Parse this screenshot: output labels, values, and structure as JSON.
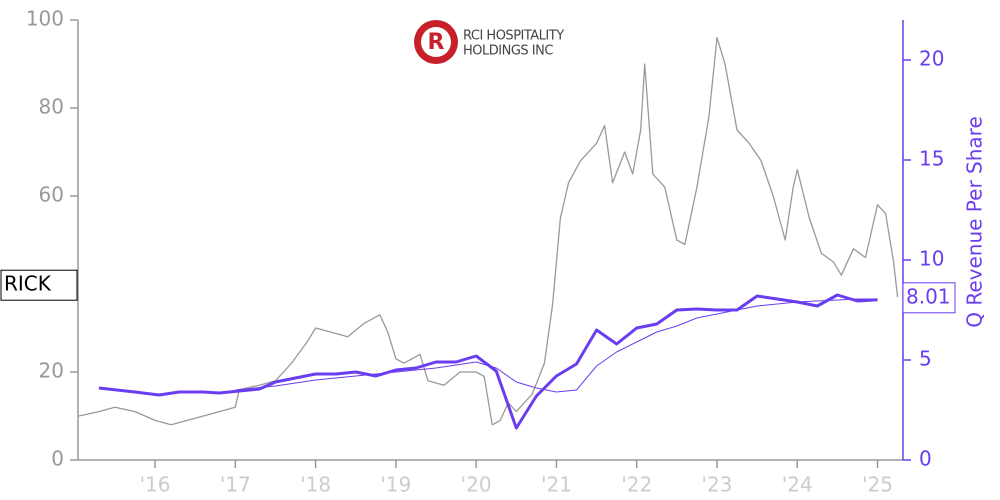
{
  "chart_data": {
    "type": "line",
    "logo_text": [
      "RCI HOSPITALITY",
      "HOLDINGS INC"
    ],
    "ticker": "RICK",
    "y2_label": "Q Revenue Per Share",
    "xlim": [
      2015.04,
      2025.28
    ],
    "xticks": [
      {
        "value": 2016,
        "label": "'16"
      },
      {
        "value": 2017,
        "label": "'17"
      },
      {
        "value": 2018,
        "label": "'18"
      },
      {
        "value": 2019,
        "label": "'19"
      },
      {
        "value": 2020,
        "label": "'20"
      },
      {
        "value": 2021,
        "label": "'21"
      },
      {
        "value": 2022,
        "label": "'22"
      },
      {
        "value": 2023,
        "label": "'23"
      },
      {
        "value": 2024,
        "label": "'24"
      },
      {
        "value": 2025,
        "label": "'25"
      }
    ],
    "ylim": [
      0,
      100
    ],
    "yticks": [
      0,
      20,
      60,
      80,
      100
    ],
    "y2lim": [
      0,
      22
    ],
    "y2ticks": [
      0,
      5,
      10,
      15,
      20
    ],
    "series": [
      {
        "color": "#999999",
        "axis": "y",
        "width": 1.3,
        "x": [
          2015.05,
          2015.3,
          2015.5,
          2015.75,
          2016.0,
          2016.2,
          2016.5,
          2016.8,
          2017.0,
          2017.05,
          2017.3,
          2017.5,
          2017.7,
          2017.9,
          2018.0,
          2018.2,
          2018.4,
          2018.6,
          2018.8,
          2018.9,
          2019.0,
          2019.1,
          2019.3,
          2019.4,
          2019.6,
          2019.8,
          2020.0,
          2020.1,
          2020.2,
          2020.3,
          2020.4,
          2020.5,
          2020.7,
          2020.85,
          2020.95,
          2021.05,
          2021.15,
          2021.3,
          2021.5,
          2021.6,
          2021.7,
          2021.85,
          2021.95,
          2022.05,
          2022.1,
          2022.2,
          2022.35,
          2022.5,
          2022.6,
          2022.75,
          2022.9,
          2023.0,
          2023.1,
          2023.25,
          2023.4,
          2023.55,
          2023.7,
          2023.85,
          2023.95,
          2024.0,
          2024.15,
          2024.3,
          2024.45,
          2024.55,
          2024.7,
          2024.85,
          2024.95,
          2025.0,
          2025.1,
          2025.2,
          2025.25
        ],
        "values": [
          10,
          11,
          12,
          11,
          9,
          8,
          9.5,
          11,
          12,
          16,
          17,
          18,
          22,
          27,
          30,
          29,
          28,
          31,
          33,
          29,
          23,
          22,
          24,
          18,
          17,
          20,
          20,
          19,
          8,
          9,
          13,
          11,
          15,
          22,
          35,
          55,
          63,
          68,
          72,
          76,
          63,
          70,
          65,
          75,
          90,
          65,
          62,
          50,
          49,
          62,
          78,
          96,
          90,
          75,
          72,
          68,
          60,
          50,
          62,
          66,
          55,
          47,
          45,
          42,
          48,
          46,
          54,
          58,
          56,
          45,
          37
        ]
      },
      {
        "color": "#6a3df0",
        "axis": "y2",
        "width": 3,
        "x": [
          2015.3,
          2015.75,
          2016.05,
          2016.3,
          2016.6,
          2016.8,
          2017.05,
          2017.3,
          2017.5,
          2017.75,
          2018.0,
          2018.25,
          2018.5,
          2018.75,
          2019.0,
          2019.25,
          2019.5,
          2019.75,
          2020.0,
          2020.25,
          2020.5,
          2020.75,
          2021.0,
          2021.25,
          2021.5,
          2021.75,
          2022.0,
          2022.25,
          2022.5,
          2022.75,
          2023.0,
          2023.25,
          2023.5,
          2023.75,
          2024.0,
          2024.25,
          2024.5,
          2024.75,
          2025.0
        ],
        "values": [
          3.6,
          3.4,
          3.25,
          3.4,
          3.4,
          3.35,
          3.45,
          3.55,
          3.9,
          4.1,
          4.3,
          4.3,
          4.4,
          4.2,
          4.5,
          4.6,
          4.9,
          4.9,
          5.2,
          4.45,
          1.6,
          3.2,
          4.2,
          4.8,
          6.5,
          5.8,
          6.6,
          6.8,
          7.5,
          7.55,
          7.5,
          7.5,
          8.2,
          8.05,
          7.9,
          7.7,
          8.25,
          7.95,
          8.01
        ]
      },
      {
        "color": "#6a3df0",
        "axis": "y2",
        "width": 1,
        "x": [
          2017.0,
          2017.5,
          2018.0,
          2018.5,
          2019.0,
          2019.5,
          2020.0,
          2020.25,
          2020.5,
          2020.75,
          2021.0,
          2021.25,
          2021.5,
          2021.75,
          2022.0,
          2022.25,
          2022.5,
          2022.75,
          2023.0,
          2023.25,
          2023.5,
          2023.75,
          2024.0,
          2024.25,
          2024.5,
          2024.75,
          2025.0
        ],
        "values": [
          3.5,
          3.7,
          4.0,
          4.2,
          4.4,
          4.6,
          4.9,
          4.6,
          3.9,
          3.6,
          3.4,
          3.5,
          4.7,
          5.4,
          5.9,
          6.4,
          6.7,
          7.1,
          7.3,
          7.5,
          7.7,
          7.8,
          7.9,
          7.95,
          8.0,
          8.05,
          8.05
        ]
      }
    ]
  }
}
